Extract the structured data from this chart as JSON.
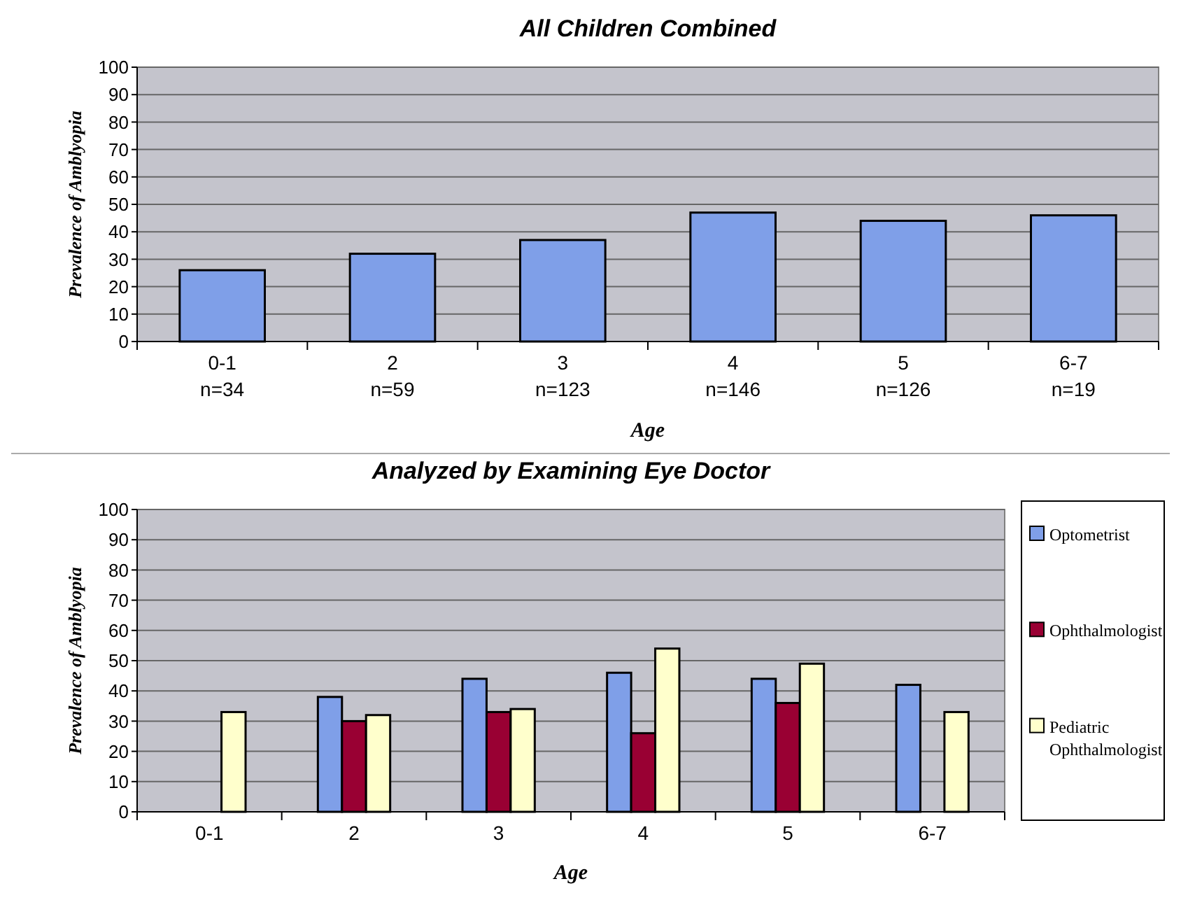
{
  "chart_data": [
    {
      "type": "bar",
      "title": "All Children Combined",
      "xlabel": "Age",
      "ylabel": "Prevalence of Amblyopia",
      "categories": [
        "0-1\nn=34",
        "2\nn=59",
        "3\nn=123",
        "4\nn=146",
        "5\nn=126",
        "6-7\nn=19"
      ],
      "values": [
        26,
        32,
        37,
        47,
        44,
        46
      ],
      "color": "#7f9fe8",
      "ylim": [
        0,
        100
      ],
      "yticks": [
        0,
        10,
        20,
        30,
        40,
        50,
        60,
        70,
        80,
        90,
        100
      ],
      "grid": "y",
      "legend": false
    },
    {
      "type": "bar",
      "title": "Analyzed by Examining Eye Doctor",
      "xlabel": "Age",
      "ylabel": "Prevalence of Amblyopia",
      "categories": [
        "0-1",
        "2",
        "3",
        "4",
        "5",
        "6-7"
      ],
      "series": [
        {
          "name": "Optometrist",
          "color": "#7f9fe8",
          "values": [
            null,
            38,
            44,
            46,
            44,
            42
          ]
        },
        {
          "name": "Ophthalmologist",
          "color": "#990033",
          "values": [
            null,
            30,
            33,
            26,
            36,
            null
          ]
        },
        {
          "name": "Pediatric Ophthalmologist",
          "color": "#ffffcc",
          "values": [
            33,
            32,
            34,
            54,
            49,
            33
          ]
        }
      ],
      "ylim": [
        0,
        100
      ],
      "yticks": [
        0,
        10,
        20,
        30,
        40,
        50,
        60,
        70,
        80,
        90,
        100
      ],
      "grid": "y",
      "legend": "right"
    }
  ]
}
